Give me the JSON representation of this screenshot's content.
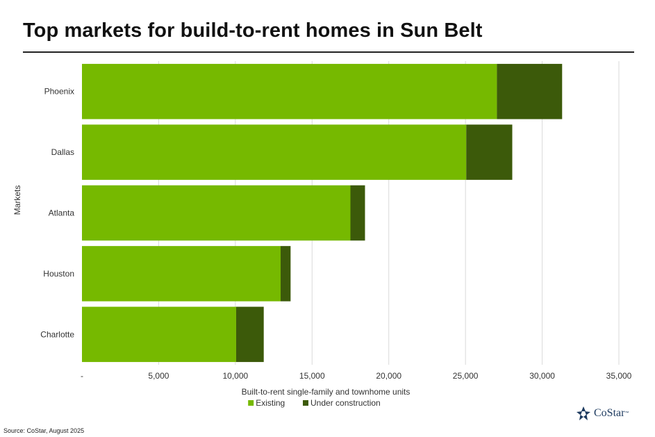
{
  "title": "Top markets for build-to-rent homes in Sun Belt",
  "source": "Source: CoStar, August 2025",
  "logo": {
    "text": "CoStar",
    "tm": "™",
    "icon": "costar-star-icon"
  },
  "colors": {
    "existing": "#76b900",
    "under_construction": "#3c5a0a",
    "grid": "#d9d9d9",
    "text": "#333333"
  },
  "chart_data": {
    "type": "bar",
    "orientation": "horizontal",
    "stacked": true,
    "categories": [
      "Phoenix",
      "Dallas",
      "Atlanta",
      "Houston",
      "Charlotte"
    ],
    "series": [
      {
        "name": "Existing",
        "values": [
          27050,
          25050,
          17500,
          12950,
          10050
        ]
      },
      {
        "name": "Under construction",
        "values": [
          4250,
          3000,
          950,
          650,
          1800
        ]
      }
    ],
    "xlabel": "Built-to-rent single-family and townhome units",
    "ylabel": "Markets",
    "xlim": [
      0,
      35000
    ],
    "xticks": [
      0,
      5000,
      10000,
      15000,
      20000,
      25000,
      30000,
      35000
    ],
    "xtick_labels": [
      "-",
      "5,000",
      "10,000",
      "15,000",
      "20,000",
      "25,000",
      "30,000",
      "35,000"
    ],
    "grid": "vertical",
    "legend": "bottom-center"
  }
}
